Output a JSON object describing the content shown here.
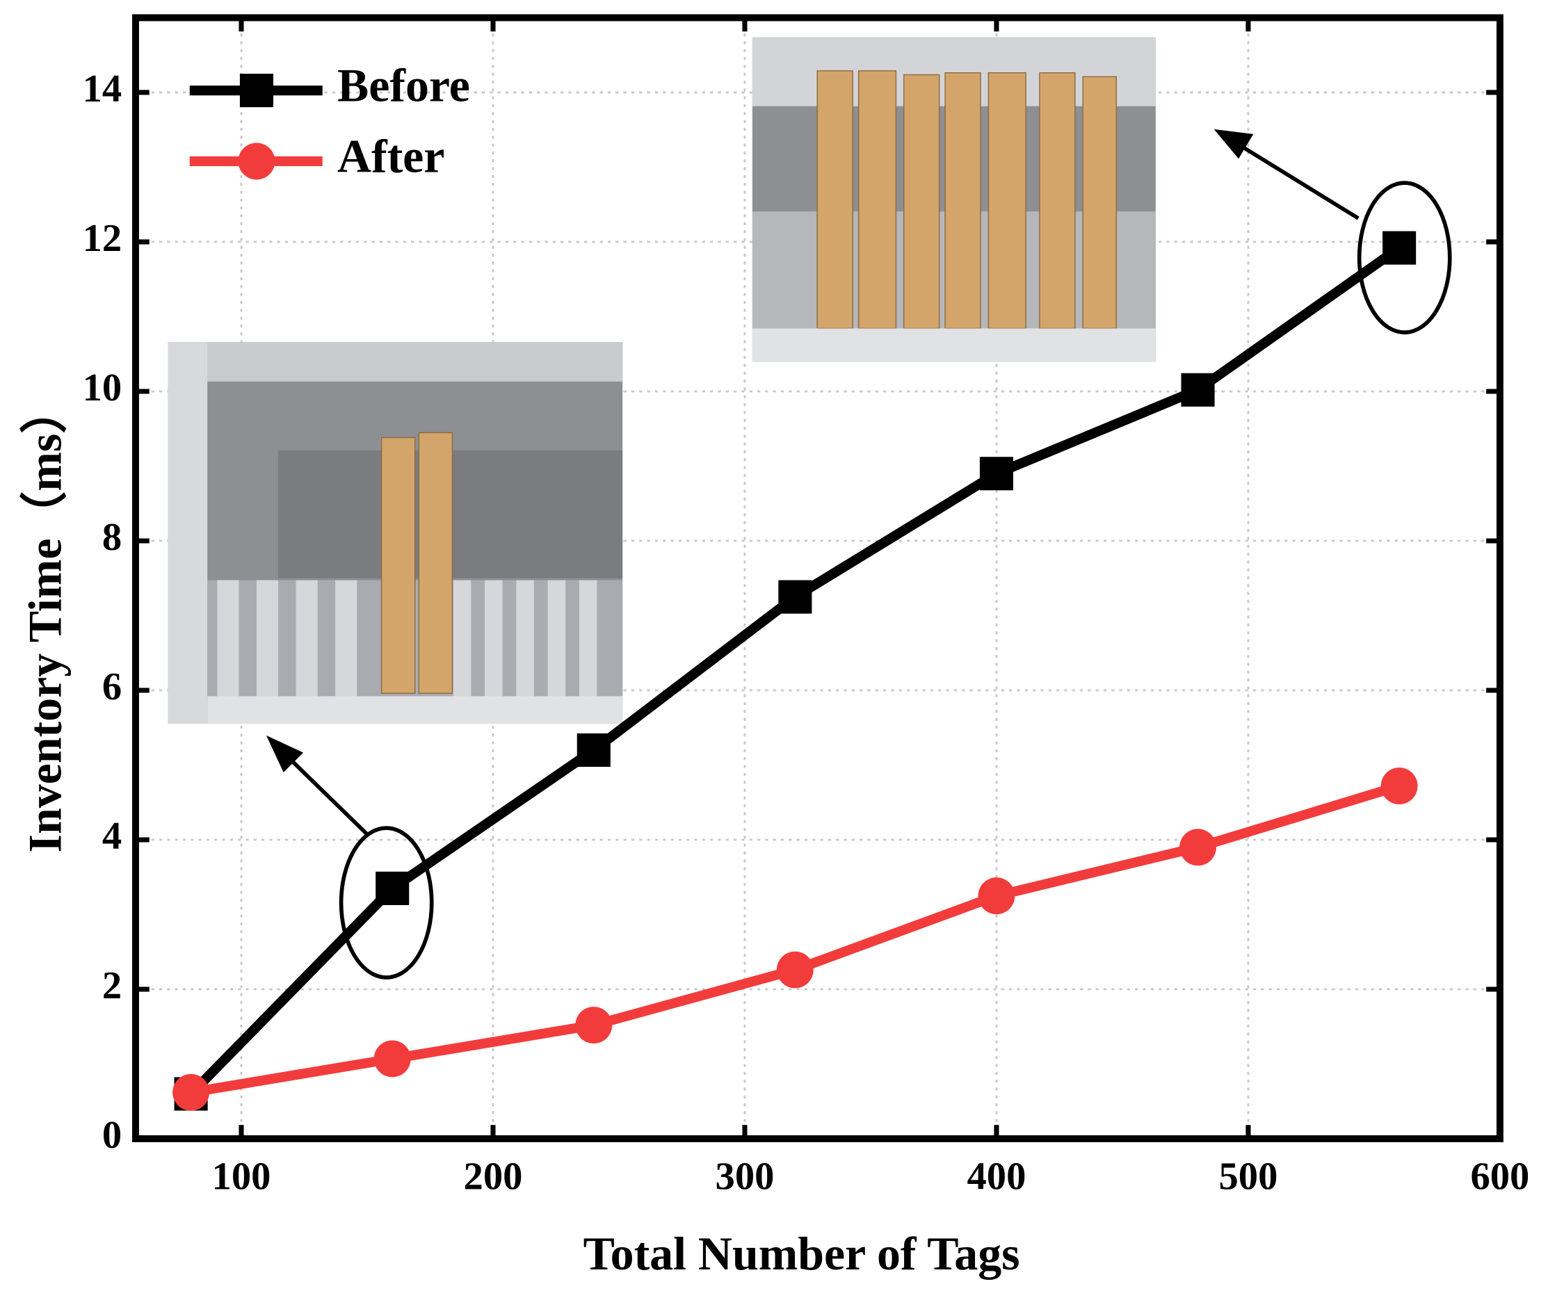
{
  "chart_data": {
    "type": "line",
    "x_label": "Total Number of Tags",
    "y_label": "Inventory Time（ms）",
    "x": [
      80,
      160,
      240,
      320,
      400,
      480,
      560
    ],
    "series": [
      {
        "name": "Before",
        "color": "#000000",
        "marker": "square",
        "values": [
          0.6,
          3.35,
          5.2,
          7.25,
          8.9,
          10.02,
          11.92
        ]
      },
      {
        "name": "After",
        "color": "#f23c3c",
        "marker": "circle",
        "values": [
          0.62,
          1.07,
          1.52,
          2.26,
          3.25,
          3.9,
          4.72
        ]
      }
    ],
    "xlim": [
      58,
      600
    ],
    "ylim": [
      0,
      15
    ],
    "xticks": [
      100,
      200,
      300,
      400,
      500,
      600
    ],
    "yticks": [
      0,
      2,
      4,
      6,
      8,
      10,
      12,
      14
    ],
    "grid": true,
    "legend": "upper left"
  }
}
